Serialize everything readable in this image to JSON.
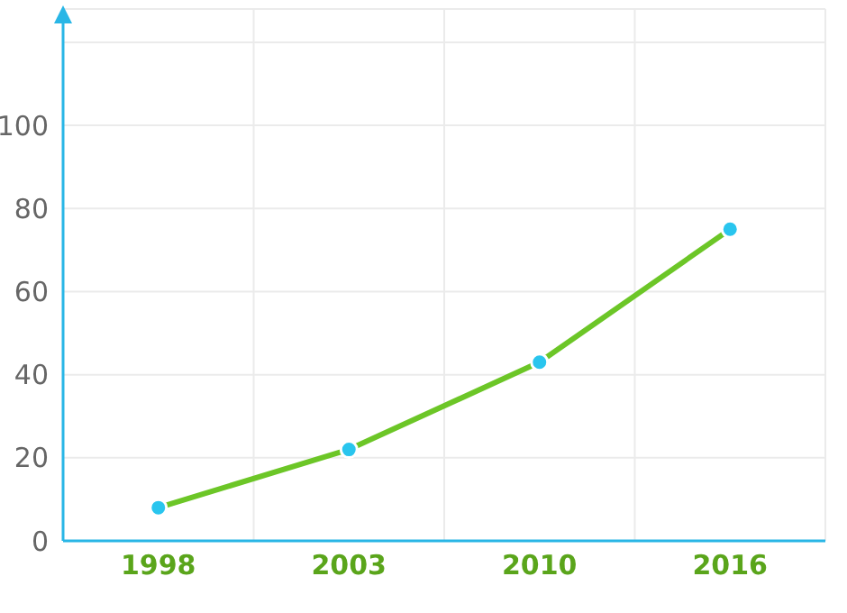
{
  "chart_data": {
    "type": "line",
    "categories": [
      "1998",
      "2003",
      "2010",
      "2016"
    ],
    "series": [
      {
        "color": "#6cc627",
        "values": [
          8,
          22,
          43,
          75
        ]
      }
    ],
    "ylim": [
      0,
      128
    ],
    "yticks": [
      0,
      20,
      40,
      60,
      80,
      100,
      {
        "value": 120,
        "label": null
      }
    ],
    "grid": true,
    "marker": "circle",
    "line_style": "solid"
  }
}
